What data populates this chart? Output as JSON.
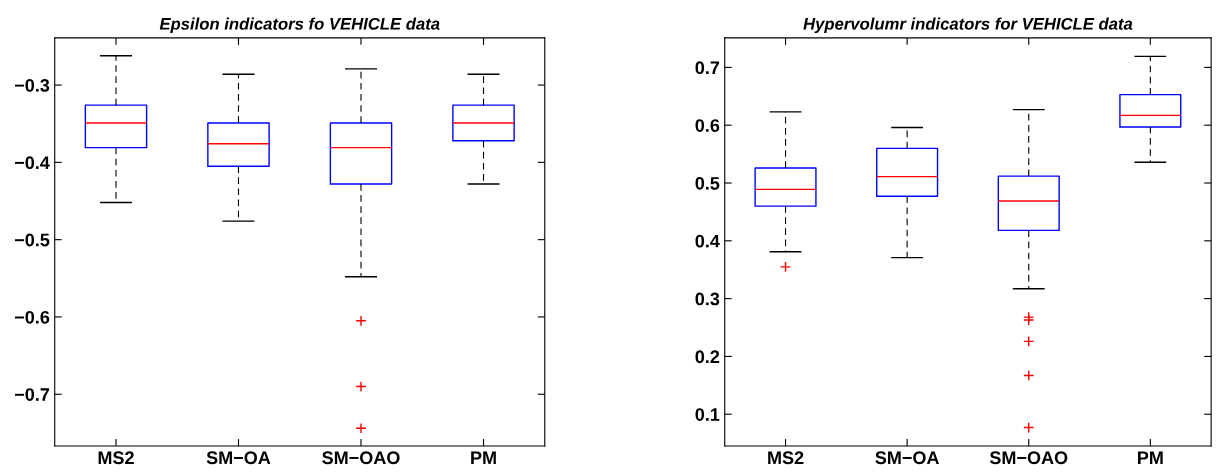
{
  "chart_data": [
    {
      "type": "box",
      "title": "Epsilon indicators fo VEHICLE data",
      "categories": [
        "MS2",
        "SM−OA",
        "SM−OAO",
        "PM"
      ],
      "color": "#0000ff",
      "boxes": [
        {
          "low": -0.452,
          "q1": -0.381,
          "median": -0.349,
          "q3": -0.326,
          "high": -0.262
        },
        {
          "low": -0.476,
          "q1": -0.405,
          "median": -0.376,
          "q3": -0.349,
          "high": -0.286
        },
        {
          "low": -0.548,
          "q1": -0.428,
          "median": -0.381,
          "q3": -0.349,
          "high": -0.279,
          "outliers": [
            -0.605,
            -0.69,
            -0.744
          ]
        },
        {
          "low": -0.428,
          "q1": -0.372,
          "median": -0.349,
          "q3": -0.326,
          "high": -0.286
        }
      ],
      "ylim": [
        -0.767,
        -0.239
      ],
      "yticks": [
        -0.7,
        -0.6,
        -0.5,
        -0.4,
        -0.3
      ],
      "grid": false,
      "legend": false
    },
    {
      "type": "box",
      "title": "Hypervolumr indicators for VEHICLE data",
      "categories": [
        "MS2",
        "SM−OA",
        "SM−OAO",
        "PM"
      ],
      "color": "#0000ff",
      "boxes": [
        {
          "low": 0.381,
          "q1": 0.46,
          "median": 0.489,
          "q3": 0.526,
          "high": 0.623,
          "outliers": [
            0.355
          ]
        },
        {
          "low": 0.371,
          "q1": 0.477,
          "median": 0.511,
          "q3": 0.56,
          "high": 0.596
        },
        {
          "low": 0.317,
          "q1": 0.418,
          "median": 0.469,
          "q3": 0.512,
          "high": 0.627,
          "outliers": [
            0.268,
            0.263,
            0.226,
            0.167,
            0.077
          ]
        },
        {
          "low": 0.536,
          "q1": 0.597,
          "median": 0.617,
          "q3": 0.653,
          "high": 0.719
        }
      ],
      "ylim": [
        0.045,
        0.751
      ],
      "yticks": [
        0.1,
        0.2,
        0.3,
        0.4,
        0.5,
        0.6,
        0.7
      ],
      "grid": false,
      "legend": false
    }
  ]
}
